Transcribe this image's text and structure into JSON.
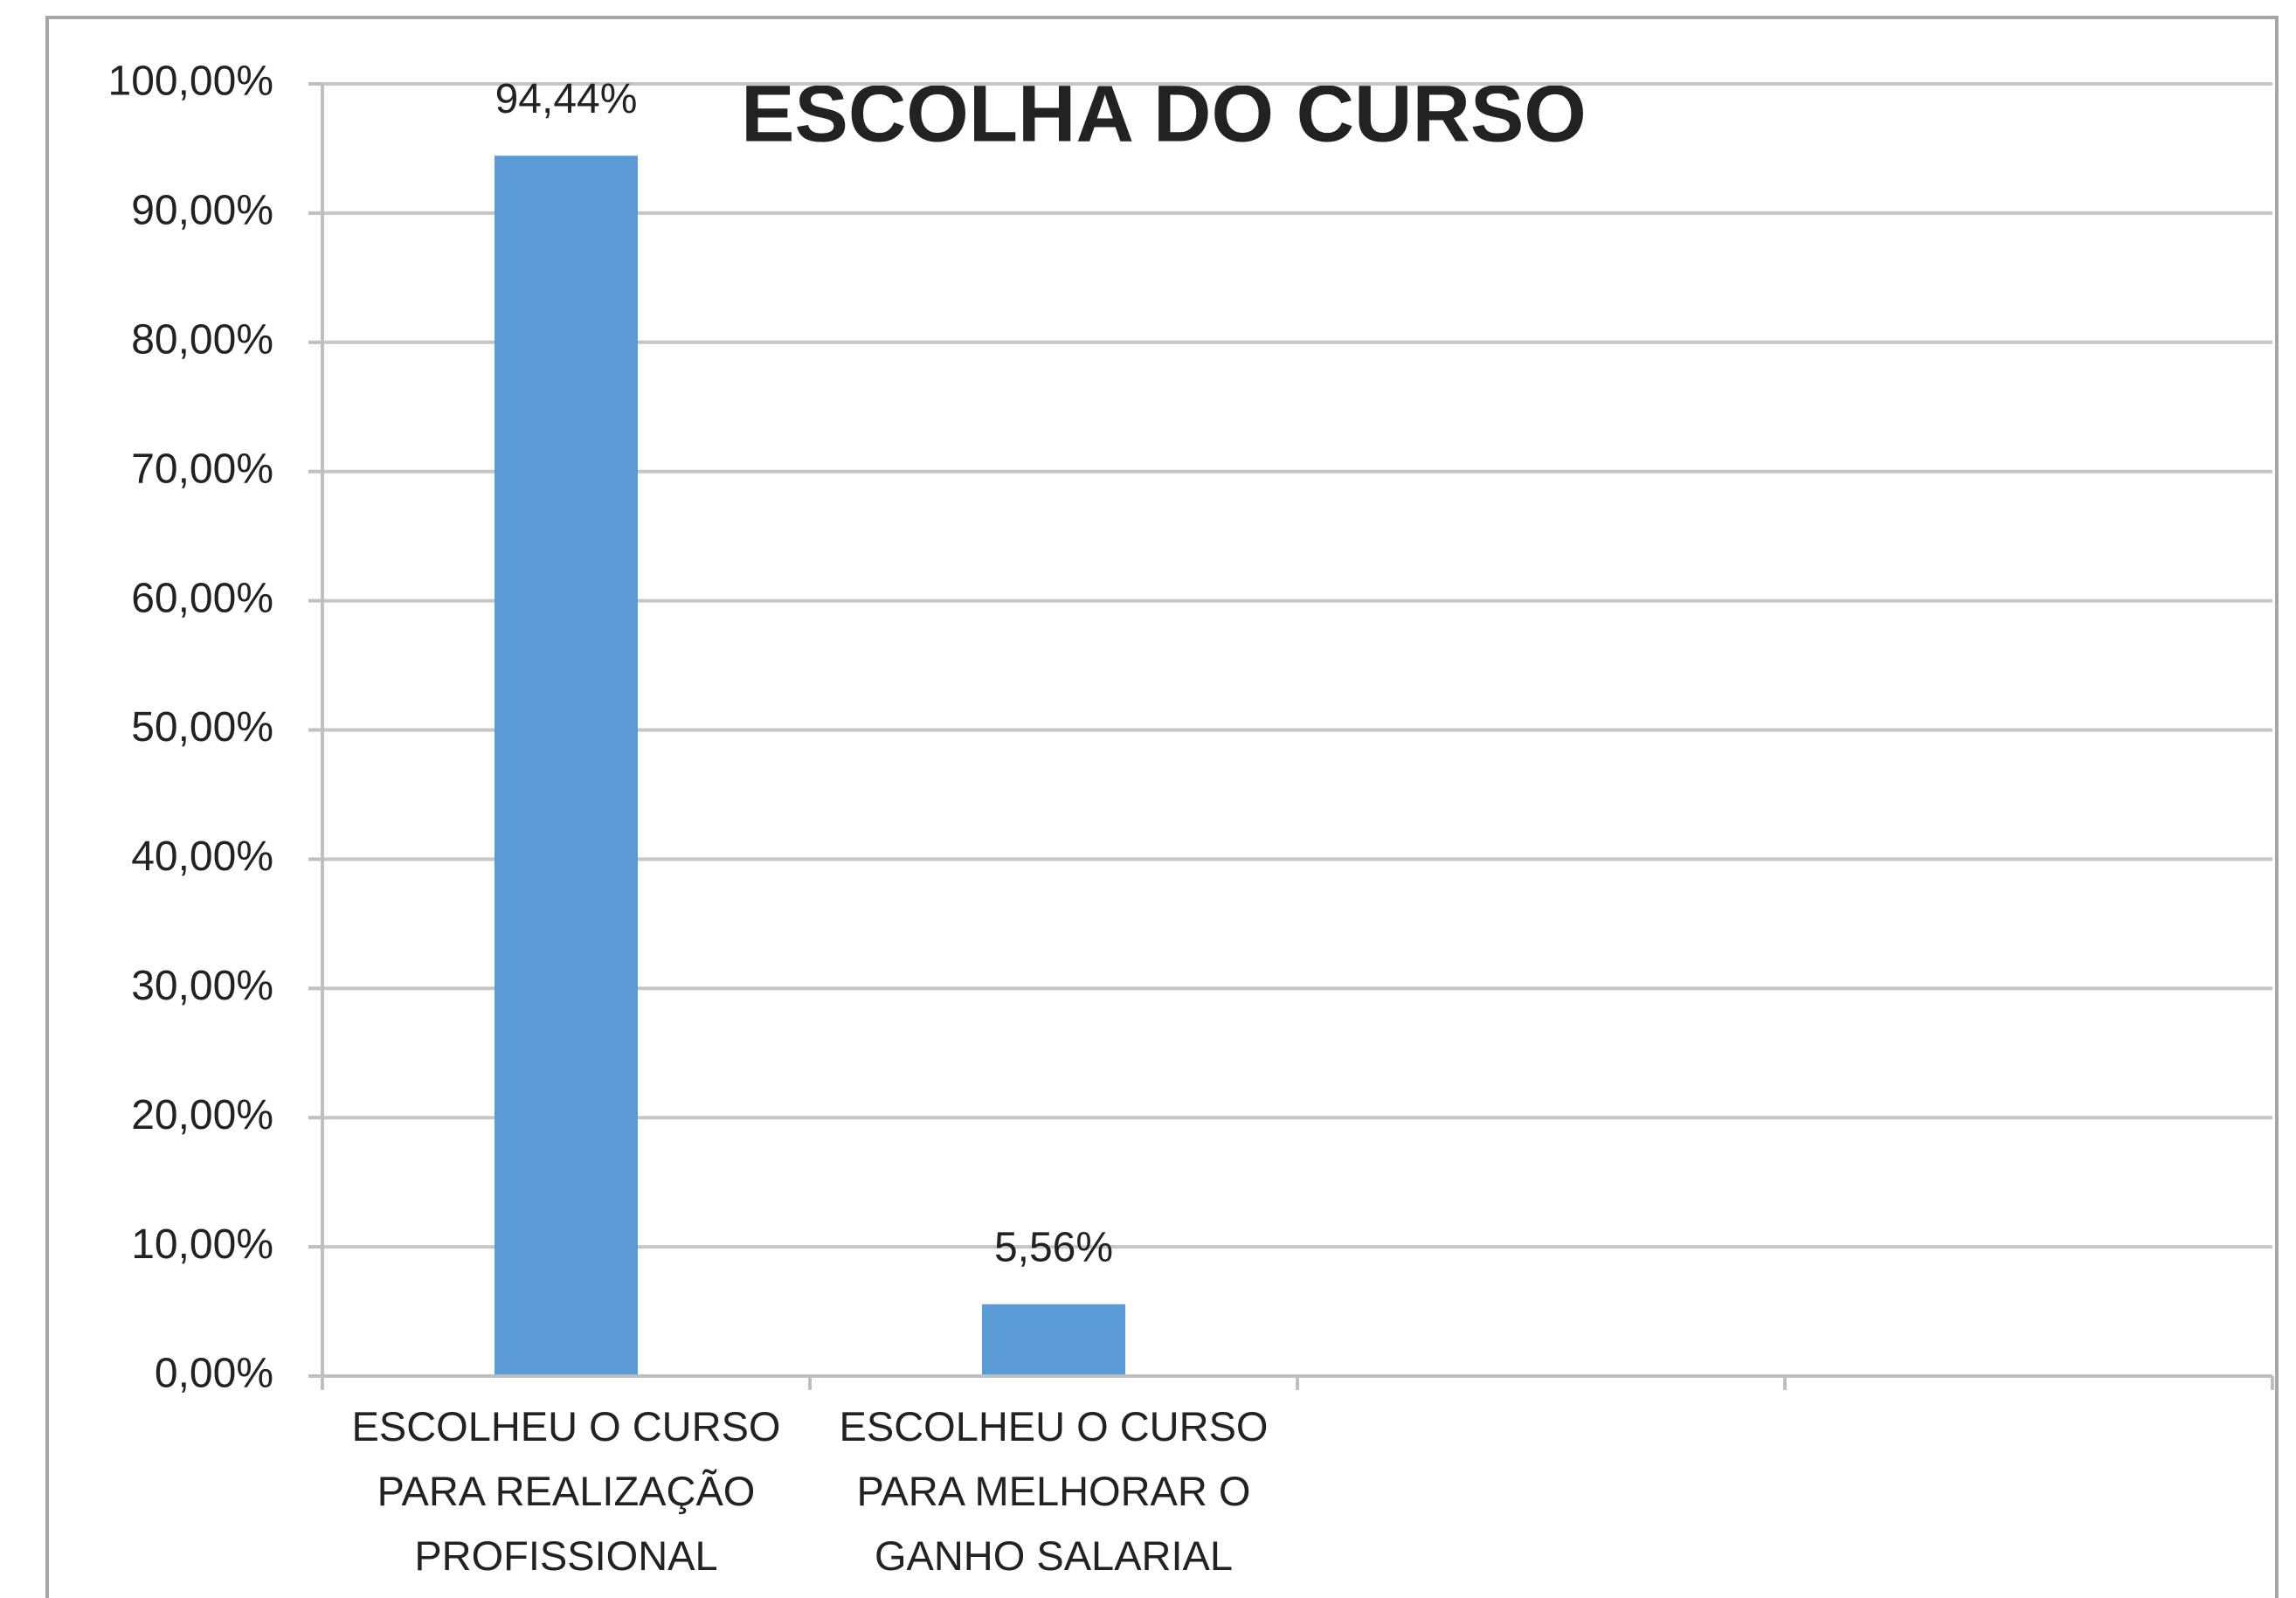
{
  "chart_data": {
    "type": "bar",
    "title": "ESCOLHA DO CURSO",
    "categories": [
      "ESCOLHEU O CURSO PARA REALIZAÇÃO PROFISSIONAL",
      "ESCOLHEU O CURSO PARA MELHORAR O GANHO SALARIAL",
      null,
      null
    ],
    "values": [
      94.44,
      5.56,
      null,
      null
    ],
    "value_labels": [
      "94,44%",
      "5,56%",
      null,
      null
    ],
    "color": "#5b9bd5",
    "ylim": [
      0,
      100
    ],
    "yticks": [
      {
        "value": 0,
        "label": "0,00%"
      },
      {
        "value": 10,
        "label": "10,00%"
      },
      {
        "value": 20,
        "label": "20,00%"
      },
      {
        "value": 30,
        "label": "30,00%"
      },
      {
        "value": 40,
        "label": "40,00%"
      },
      {
        "value": 50,
        "label": "50,00%"
      },
      {
        "value": 60,
        "label": "60,00%"
      },
      {
        "value": 70,
        "label": "70,00%"
      },
      {
        "value": 80,
        "label": "80,00%"
      },
      {
        "value": 90,
        "label": "90,00%"
      },
      {
        "value": 100,
        "label": "100,00%"
      }
    ],
    "grid": true
  }
}
